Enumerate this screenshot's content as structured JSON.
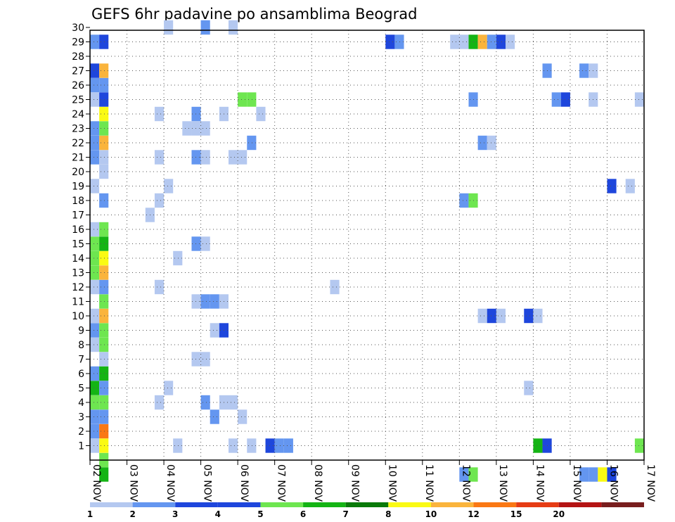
{
  "chart_data": {
    "type": "heatmap",
    "title": "GEFS 6hr padavine po ansamblima Beograd",
    "xlabel": "",
    "ylabel": "",
    "x_unit": "6-hour step",
    "x_range": [
      0,
      60
    ],
    "x_tick_labels": [
      "02 NOV",
      "03 NOV",
      "04 NOV",
      "05 NOV",
      "06 NOV",
      "07 NOV",
      "08 NOV",
      "09 NOV",
      "10 NOV",
      "11 NOV",
      "12 NOV",
      "13 NOV",
      "14 NOV",
      "15 NOV",
      "16 NOV",
      "17 NOV"
    ],
    "y_range": [
      0,
      30
    ],
    "y_tick_labels": [
      "1",
      "2",
      "3",
      "4",
      "5",
      "6",
      "7",
      "8",
      "9",
      "10",
      "11",
      "12",
      "13",
      "14",
      "15",
      "16",
      "17",
      "18",
      "19",
      "20",
      "21",
      "22",
      "23",
      "24",
      "25",
      "26",
      "27",
      "28",
      "29",
      "30"
    ],
    "grid": true,
    "colorbar": {
      "colors": [
        "#b4c8f0",
        "#6496f0",
        "#1e46dc",
        "#1e46dc",
        "#6ee650",
        "#14b414",
        "#0a7a0a",
        "#fafa14",
        "#fab43c",
        "#fa7814",
        "#e63c14",
        "#b41414",
        "#781e1e"
      ],
      "labels": [
        "1",
        "2",
        "3",
        "4",
        "5",
        "6",
        "7",
        "8",
        "10",
        "12",
        "15",
        "20"
      ]
    },
    "cells_note": "Each cell: [ensemble member (y), time step column (x), color index]",
    "cells": [
      [
        0,
        1,
        4
      ],
      [
        1,
        0,
        0
      ],
      [
        1,
        1,
        7
      ],
      [
        1,
        9,
        0
      ],
      [
        1,
        15,
        0
      ],
      [
        1,
        17,
        0
      ],
      [
        1,
        19,
        2
      ],
      [
        1,
        20,
        1
      ],
      [
        1,
        21,
        1
      ],
      [
        1,
        48,
        5
      ],
      [
        1,
        49,
        2
      ],
      [
        1,
        59,
        4
      ],
      [
        2,
        0,
        1
      ],
      [
        2,
        1,
        9
      ],
      [
        3,
        0,
        1
      ],
      [
        3,
        1,
        1
      ],
      [
        3,
        13,
        1
      ],
      [
        3,
        16,
        0
      ],
      [
        4,
        0,
        4
      ],
      [
        4,
        1,
        4
      ],
      [
        4,
        7,
        0
      ],
      [
        4,
        12,
        1
      ],
      [
        4,
        14,
        0
      ],
      [
        4,
        15,
        0
      ],
      [
        5,
        0,
        5
      ],
      [
        5,
        1,
        1
      ],
      [
        5,
        8,
        0
      ],
      [
        5,
        47,
        0
      ],
      [
        6,
        0,
        1
      ],
      [
        6,
        1,
        5
      ],
      [
        7,
        1,
        0
      ],
      [
        7,
        11,
        0
      ],
      [
        7,
        12,
        0
      ],
      [
        8,
        0,
        0
      ],
      [
        8,
        1,
        4
      ],
      [
        9,
        0,
        1
      ],
      [
        9,
        1,
        4
      ],
      [
        9,
        13,
        0
      ],
      [
        9,
        14,
        2
      ],
      [
        10,
        0,
        0
      ],
      [
        10,
        1,
        8
      ],
      [
        10,
        42,
        0
      ],
      [
        10,
        43,
        2
      ],
      [
        10,
        44,
        0
      ],
      [
        10,
        47,
        2
      ],
      [
        10,
        48,
        0
      ],
      [
        11,
        1,
        4
      ],
      [
        11,
        11,
        0
      ],
      [
        11,
        12,
        1
      ],
      [
        11,
        13,
        1
      ],
      [
        11,
        14,
        0
      ],
      [
        12,
        0,
        0
      ],
      [
        12,
        1,
        1
      ],
      [
        12,
        7,
        0
      ],
      [
        12,
        26,
        0
      ],
      [
        13,
        0,
        4
      ],
      [
        13,
        1,
        8
      ],
      [
        14,
        0,
        4
      ],
      [
        14,
        1,
        7
      ],
      [
        14,
        9,
        0
      ],
      [
        15,
        0,
        4
      ],
      [
        15,
        1,
        5
      ],
      [
        15,
        11,
        1
      ],
      [
        15,
        12,
        0
      ],
      [
        16,
        0,
        0
      ],
      [
        16,
        1,
        4
      ],
      [
        17,
        6,
        0
      ],
      [
        18,
        1,
        1
      ],
      [
        18,
        7,
        0
      ],
      [
        18,
        40,
        1
      ],
      [
        18,
        41,
        4
      ],
      [
        19,
        0,
        0
      ],
      [
        19,
        8,
        0
      ],
      [
        19,
        56,
        2
      ],
      [
        19,
        58,
        0
      ],
      [
        20,
        1,
        0
      ],
      [
        21,
        0,
        1
      ],
      [
        21,
        1,
        0
      ],
      [
        21,
        7,
        0
      ],
      [
        21,
        11,
        1
      ],
      [
        21,
        12,
        0
      ],
      [
        21,
        15,
        0
      ],
      [
        21,
        16,
        0
      ],
      [
        22,
        0,
        1
      ],
      [
        22,
        1,
        8
      ],
      [
        22,
        17,
        1
      ],
      [
        22,
        42,
        1
      ],
      [
        22,
        43,
        0
      ],
      [
        23,
        0,
        1
      ],
      [
        23,
        1,
        4
      ],
      [
        23,
        10,
        0
      ],
      [
        23,
        11,
        0
      ],
      [
        23,
        12,
        0
      ],
      [
        24,
        1,
        7
      ],
      [
        24,
        7,
        0
      ],
      [
        24,
        11,
        1
      ],
      [
        24,
        14,
        0
      ],
      [
        24,
        18,
        0
      ],
      [
        25,
        0,
        0
      ],
      [
        25,
        1,
        2
      ],
      [
        25,
        16,
        4
      ],
      [
        25,
        17,
        4
      ],
      [
        25,
        41,
        1
      ],
      [
        25,
        50,
        1
      ],
      [
        25,
        51,
        2
      ],
      [
        25,
        54,
        0
      ],
      [
        25,
        59,
        0
      ],
      [
        26,
        0,
        1
      ],
      [
        26,
        1,
        1
      ],
      [
        27,
        0,
        2
      ],
      [
        27,
        1,
        8
      ],
      [
        27,
        49,
        1
      ],
      [
        27,
        53,
        1
      ],
      [
        27,
        54,
        0
      ],
      [
        29,
        0,
        1
      ],
      [
        29,
        1,
        2
      ],
      [
        29,
        32,
        2
      ],
      [
        29,
        33,
        1
      ],
      [
        29,
        39,
        0
      ],
      [
        29,
        40,
        0
      ],
      [
        29,
        41,
        5
      ],
      [
        29,
        42,
        8
      ],
      [
        29,
        43,
        1
      ],
      [
        29,
        44,
        2
      ],
      [
        29,
        45,
        0
      ],
      [
        30,
        8,
        0
      ],
      [
        30,
        12,
        1
      ],
      [
        30,
        15,
        0
      ],
      [
        -1,
        1,
        5
      ],
      [
        -1,
        40,
        1
      ],
      [
        -1,
        41,
        4
      ],
      [
        -1,
        53,
        1
      ],
      [
        -1,
        54,
        1
      ],
      [
        -1,
        55,
        7
      ],
      [
        -1,
        56,
        2
      ]
    ]
  }
}
